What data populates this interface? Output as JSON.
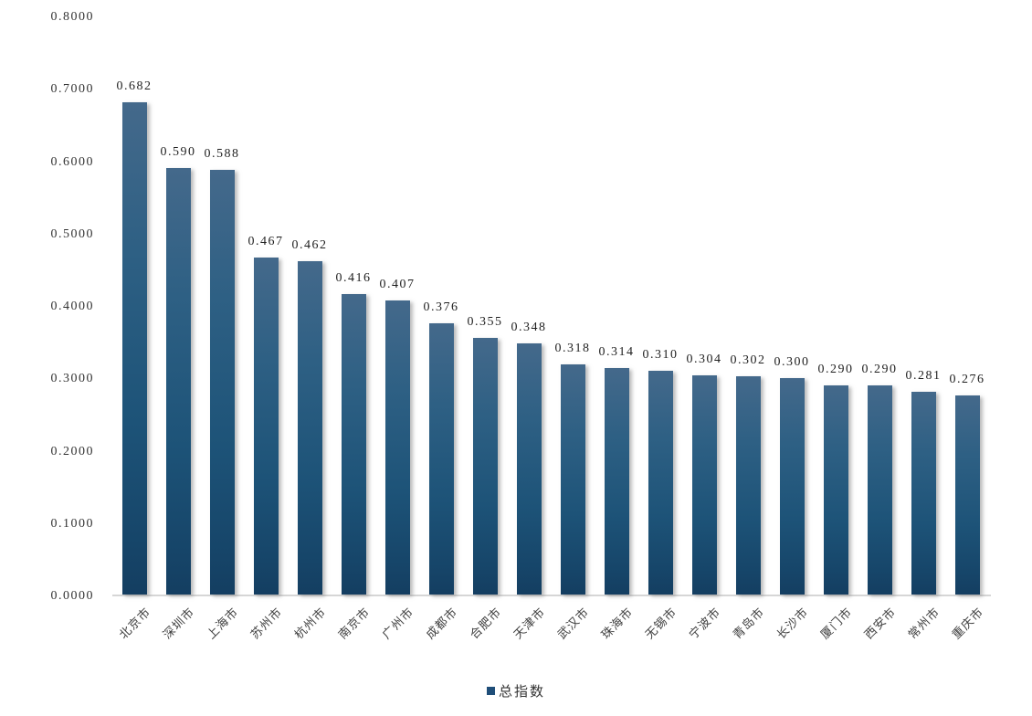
{
  "chart_data": {
    "type": "bar",
    "title": "",
    "categories": [
      "北京市",
      "深圳市",
      "上海市",
      "苏州市",
      "杭州市",
      "南京市",
      "广州市",
      "成都市",
      "合肥市",
      "天津市",
      "武汉市",
      "珠海市",
      "无锡市",
      "宁波市",
      "青岛市",
      "长沙市",
      "厦门市",
      "西安市",
      "常州市",
      "重庆市"
    ],
    "values": [
      0.682,
      0.59,
      0.588,
      0.467,
      0.462,
      0.416,
      0.407,
      0.376,
      0.355,
      0.348,
      0.318,
      0.314,
      0.31,
      0.304,
      0.302,
      0.3,
      0.29,
      0.29,
      0.281,
      0.276
    ],
    "data_labels": [
      "0.682",
      "0.590",
      "0.588",
      "0.467",
      "0.462",
      "0.416",
      "0.407",
      "0.376",
      "0.355",
      "0.348",
      "0.318",
      "0.314",
      "0.310",
      "0.304",
      "0.302",
      "0.300",
      "0.290",
      "0.290",
      "0.281",
      "0.276"
    ],
    "series": [
      {
        "name": "总指数",
        "values": [
          0.682,
          0.59,
          0.588,
          0.467,
          0.462,
          0.416,
          0.407,
          0.376,
          0.355,
          0.348,
          0.318,
          0.314,
          0.31,
          0.304,
          0.302,
          0.3,
          0.29,
          0.29,
          0.281,
          0.276
        ]
      }
    ],
    "xlabel": "",
    "ylabel": "",
    "y_axis": {
      "min": 0.0,
      "max": 0.8,
      "step": 0.1,
      "tick_labels": [
        "0.8000",
        "0.7000",
        "0.6000",
        "0.5000",
        "0.4000",
        "0.3000",
        "0.2000",
        "0.1000",
        "0.0000"
      ]
    },
    "grid": false,
    "legend": {
      "label": "总指数",
      "position": "bottom"
    },
    "colors": {
      "bar_gradient_top": "#44698b",
      "bar_gradient_mid": "#1d5378",
      "bar_gradient_bottom": "#143e61",
      "legend_marker": "#1f4e79",
      "axis_line": "#d6d6d6",
      "tick_text": "#333333",
      "label_text": "#1f1f1f"
    }
  }
}
